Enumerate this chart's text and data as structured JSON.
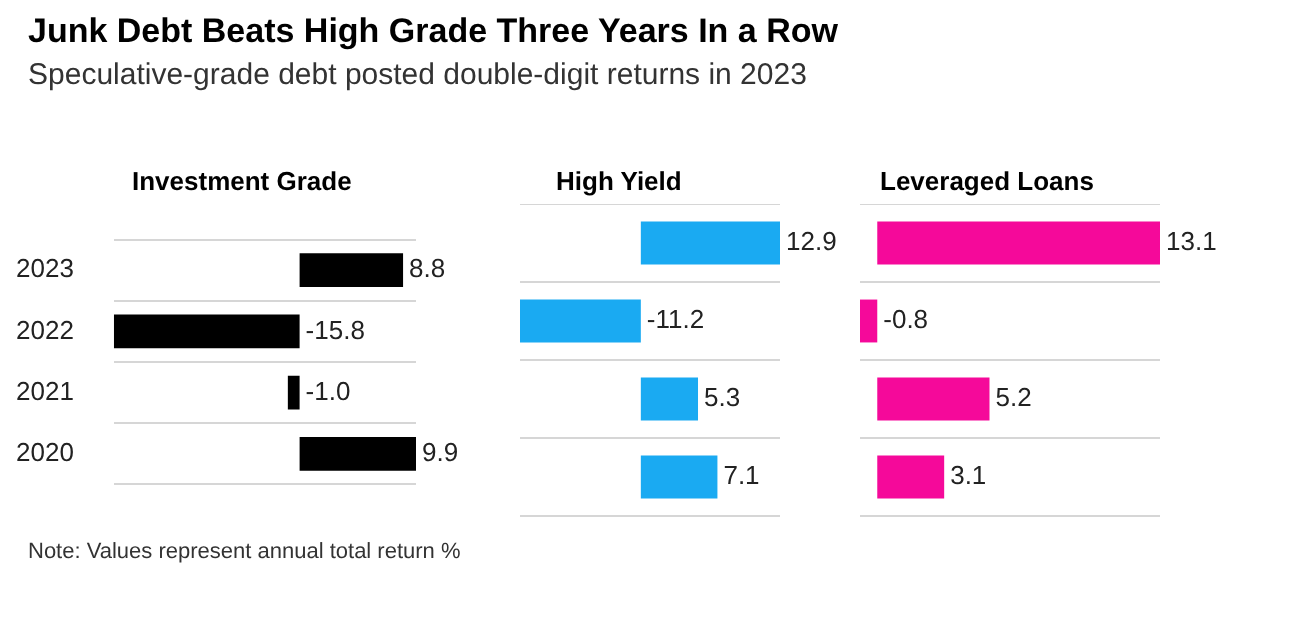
{
  "chart_data": [
    {
      "type": "other",
      "title": "Junk Debt Beats High Grade Three Years In a Row",
      "subtitle": "Speculative-grade debt posted double-digit returns in 2023",
      "annotations": [
        "Note: Values represent annual total return %"
      ]
    },
    {
      "type": "bar",
      "orientation": "horizontal",
      "title": "Investment Grade",
      "categories": [
        "2023",
        "2022",
        "2021",
        "2020"
      ],
      "values": [
        8.8,
        -15.8,
        -1.0,
        9.9
      ],
      "color": "#000000",
      "data_labels": true,
      "value_labels": [
        "8.8",
        "-15.8",
        "-1.0",
        "9.9"
      ],
      "grid": "y",
      "tick_labels": "y"
    },
    {
      "type": "bar",
      "orientation": "horizontal",
      "title": "High Yield",
      "categories": [
        "2023",
        "2022",
        "2021",
        "2020"
      ],
      "values": [
        12.9,
        -11.2,
        5.3,
        7.1
      ],
      "color": "#1aaaf2",
      "data_labels": true,
      "value_labels": [
        "12.9",
        "-11.2",
        "5.3",
        "7.1"
      ],
      "grid": "y",
      "tick_labels": false
    },
    {
      "type": "bar",
      "orientation": "horizontal",
      "title": "Leveraged Loans",
      "categories": [
        "2023",
        "2022",
        "2021",
        "2020"
      ],
      "values": [
        13.1,
        -0.8,
        5.2,
        3.1
      ],
      "color": "#f5099a",
      "data_labels": true,
      "value_labels": [
        "13.1",
        "-0.8",
        "5.2",
        "3.1"
      ],
      "grid": "y",
      "tick_labels": false
    }
  ]
}
